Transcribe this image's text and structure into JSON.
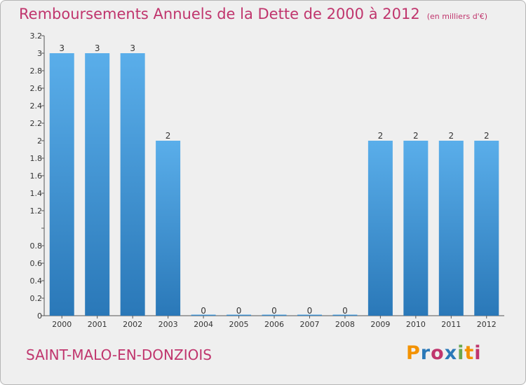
{
  "header": {
    "title": "Remboursements Annuels de la Dette de 2000 à 2012",
    "unit": "(en milliers d'€)"
  },
  "footer": {
    "commune": "SAINT-MALO-EN-DONZIOIS",
    "logo_text": "Proxiti"
  },
  "colors": {
    "title": "#c0356d",
    "bar_top": "#5aaeea",
    "bar_bottom": "#2a78b8",
    "background": "#efefef",
    "logo": [
      "#f39200",
      "#2a78b8",
      "#c0356d",
      "#2a78b8",
      "#6aa84f",
      "#f39200",
      "#c0356d"
    ]
  },
  "chart_data": {
    "type": "bar",
    "categories": [
      "2000",
      "2001",
      "2002",
      "2003",
      "2004",
      "2005",
      "2006",
      "2007",
      "2008",
      "2009",
      "2010",
      "2011",
      "2012"
    ],
    "values": [
      3,
      3,
      3,
      2,
      0,
      0,
      0,
      0,
      0,
      2,
      2,
      2,
      2
    ],
    "data_labels": [
      "3",
      "3",
      "3",
      "2",
      "0",
      "0",
      "0",
      "0",
      "0",
      "2",
      "2",
      "2",
      "2"
    ],
    "ylim": [
      0,
      3.2
    ],
    "yticks": [
      0,
      0.2,
      0.4,
      0.6,
      0.8,
      1,
      1.2,
      1.4,
      1.6,
      1.8,
      2,
      2.2,
      2.4,
      2.6,
      2.8,
      3,
      3.2
    ],
    "ytick_labels": [
      "0",
      "0.2",
      "0.4",
      "0.6",
      "0.8",
      "",
      "1.2",
      "1.4",
      "1.6",
      "1.8",
      "2",
      "2.2",
      "2.4",
      "2.6",
      "2.8",
      "3",
      "3.2"
    ],
    "title": "Remboursements Annuels de la Dette de 2000 à 2012",
    "xlabel": "",
    "ylabel": "",
    "grid": false,
    "legend": "none"
  }
}
